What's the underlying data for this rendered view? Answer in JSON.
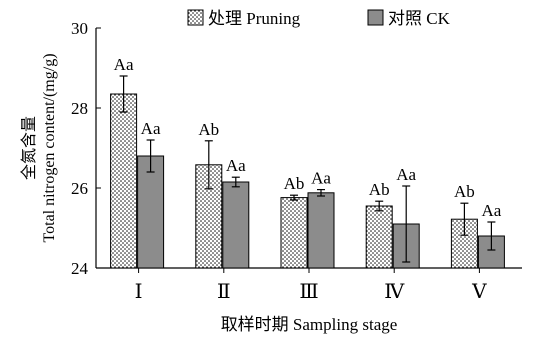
{
  "chart_data": {
    "type": "bar",
    "title": "",
    "xlabel": "取样时期 Sampling stage",
    "ylabel": [
      "全氮含量",
      "Total nitrogen content/(mg/g)"
    ],
    "ylim": [
      24,
      30
    ],
    "yticks": [
      "24",
      "26",
      "28",
      "30"
    ],
    "categories": [
      "Ⅰ",
      "Ⅱ",
      "Ⅲ",
      "Ⅳ",
      "Ⅴ"
    ],
    "legend_position": "top",
    "series": [
      {
        "name": "处理 Pruning",
        "pattern": "dotted",
        "color": "#ffffff",
        "values": [
          28.35,
          26.58,
          25.76,
          25.55,
          25.22
        ],
        "errors": [
          0.45,
          0.6,
          0.06,
          0.12,
          0.4
        ],
        "labels": [
          "Aa",
          "Ab",
          "Ab",
          "Ab",
          "Ab"
        ]
      },
      {
        "name": "对照 CK",
        "pattern": "solid",
        "color": "#8c8c8c",
        "values": [
          26.8,
          26.15,
          25.88,
          25.1,
          24.8
        ],
        "errors": [
          0.4,
          0.12,
          0.08,
          0.95,
          0.35
        ],
        "labels": [
          "Aa",
          "Aa",
          "Aa",
          "Aa",
          "Aa"
        ]
      }
    ]
  }
}
